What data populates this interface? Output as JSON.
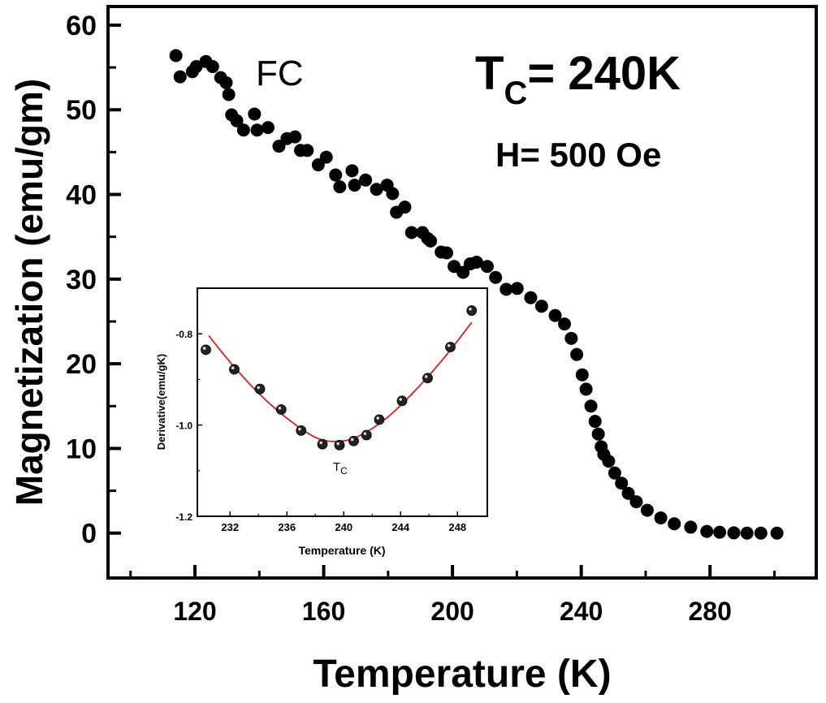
{
  "chart_data": [
    {
      "type": "scatter",
      "role": "main",
      "xlabel": "Temperature (K)",
      "ylabel": "Magnetization (emu/gm)",
      "xlim": [
        93,
        313
      ],
      "ylim": [
        -5.3,
        62.2
      ],
      "xticks": [
        120,
        160,
        200,
        240,
        280
      ],
      "xminor": [
        100,
        140,
        180,
        220,
        260,
        300
      ],
      "yticks": [
        0,
        10,
        20,
        30,
        40,
        50,
        60
      ],
      "yminor": [
        5,
        15,
        25,
        35,
        45,
        55
      ],
      "grid": false,
      "marker_color": "#000000",
      "annotations": {
        "mode": "FC",
        "tc_prefix": "T",
        "tc_sub": "C",
        "tc_value": "= 240K",
        "field": "H= 500 Oe"
      },
      "series": [
        {
          "x": [
            114.1,
            115.4,
            119.2,
            120.4,
            123.4,
            125.5,
            128.0,
            129.7,
            130.5,
            131.4,
            133.0,
            135.1,
            138.5,
            139.3,
            142.7,
            146.1,
            148.6,
            151.1,
            152.8,
            154.9,
            158.3,
            160.8,
            163.7,
            165.0,
            168.8,
            169.6,
            173.0,
            176.4,
            179.7,
            181.4,
            182.6,
            185.2,
            187.3,
            190.7,
            192.3,
            193.2,
            196.5,
            198.2,
            200.5,
            203.3,
            205.5,
            207.5,
            210.8,
            213.4,
            216.7,
            220.1,
            224.3,
            227.7,
            231.9,
            234.8,
            236.9,
            238.6,
            240.3,
            241.5,
            243.0,
            244.3,
            245.3,
            246.2,
            247.0,
            248.5,
            250.4,
            252.5,
            254.6,
            257.1,
            260.5,
            264.7,
            268.9,
            274.0,
            279.0,
            283.0,
            287.4,
            291.5,
            295.8,
            300.8
          ],
          "y": [
            56.4,
            53.9,
            54.5,
            55.1,
            55.7,
            55.1,
            53.8,
            53.2,
            51.8,
            49.4,
            48.7,
            47.6,
            49.5,
            47.6,
            47.9,
            45.7,
            46.6,
            46.8,
            45.2,
            45.2,
            43.5,
            44.4,
            42.3,
            40.9,
            42.8,
            41.1,
            41.7,
            40.6,
            41.1,
            40.1,
            37.9,
            38.5,
            35.5,
            35.5,
            34.8,
            34.5,
            33.2,
            33.1,
            31.5,
            30.8,
            31.8,
            32.0,
            31.5,
            30.2,
            28.8,
            28.9,
            27.8,
            26.8,
            25.7,
            24.7,
            23.0,
            21.1,
            18.7,
            17.0,
            15.0,
            13.2,
            11.7,
            10.2,
            9.3,
            8.5,
            7.1,
            5.9,
            4.7,
            3.7,
            2.7,
            1.8,
            1.1,
            0.7,
            0.2,
            0.1,
            0.03,
            0.0,
            0.0,
            0.0
          ]
        }
      ]
    },
    {
      "type": "scatter",
      "role": "inset",
      "xlabel": "Temperature (K)",
      "ylabel": "Derivative(emu/gK)",
      "xlim": [
        229.7,
        250.1
      ],
      "ylim": [
        -1.2,
        -0.7
      ],
      "xticks": [
        232,
        236,
        240,
        244,
        248
      ],
      "xminor": [
        234,
        238,
        242,
        246
      ],
      "yticks": [
        -0.8,
        -1.0,
        -1.2
      ],
      "ytick_labels": [
        "-0.8",
        "-1.0",
        "-1.2"
      ],
      "yminor": [
        -0.9,
        -1.1
      ],
      "grid": false,
      "marker_color": "#222222",
      "fit_color": "#d62020",
      "annotation": {
        "prefix": "T",
        "sub": "C"
      },
      "series": [
        {
          "x": [
            230.3,
            232.3,
            234.1,
            235.6,
            237.0,
            238.5,
            239.7,
            240.7,
            241.6,
            242.5,
            244.1,
            245.9,
            247.5,
            249.0
          ],
          "y": [
            -0.835,
            -0.878,
            -0.921,
            -0.966,
            -1.012,
            -1.042,
            -1.044,
            -1.035,
            -1.022,
            -0.988,
            -0.947,
            -0.897,
            -0.829,
            -0.749
          ]
        }
      ],
      "fit": {
        "x": [
          230.5,
          232,
          234,
          236,
          238,
          239.5,
          241,
          243,
          245,
          247,
          249
        ],
        "y": [
          -0.804,
          -0.862,
          -0.93,
          -0.985,
          -1.027,
          -1.036,
          -1.025,
          -0.985,
          -0.925,
          -0.855,
          -0.775
        ]
      }
    }
  ]
}
